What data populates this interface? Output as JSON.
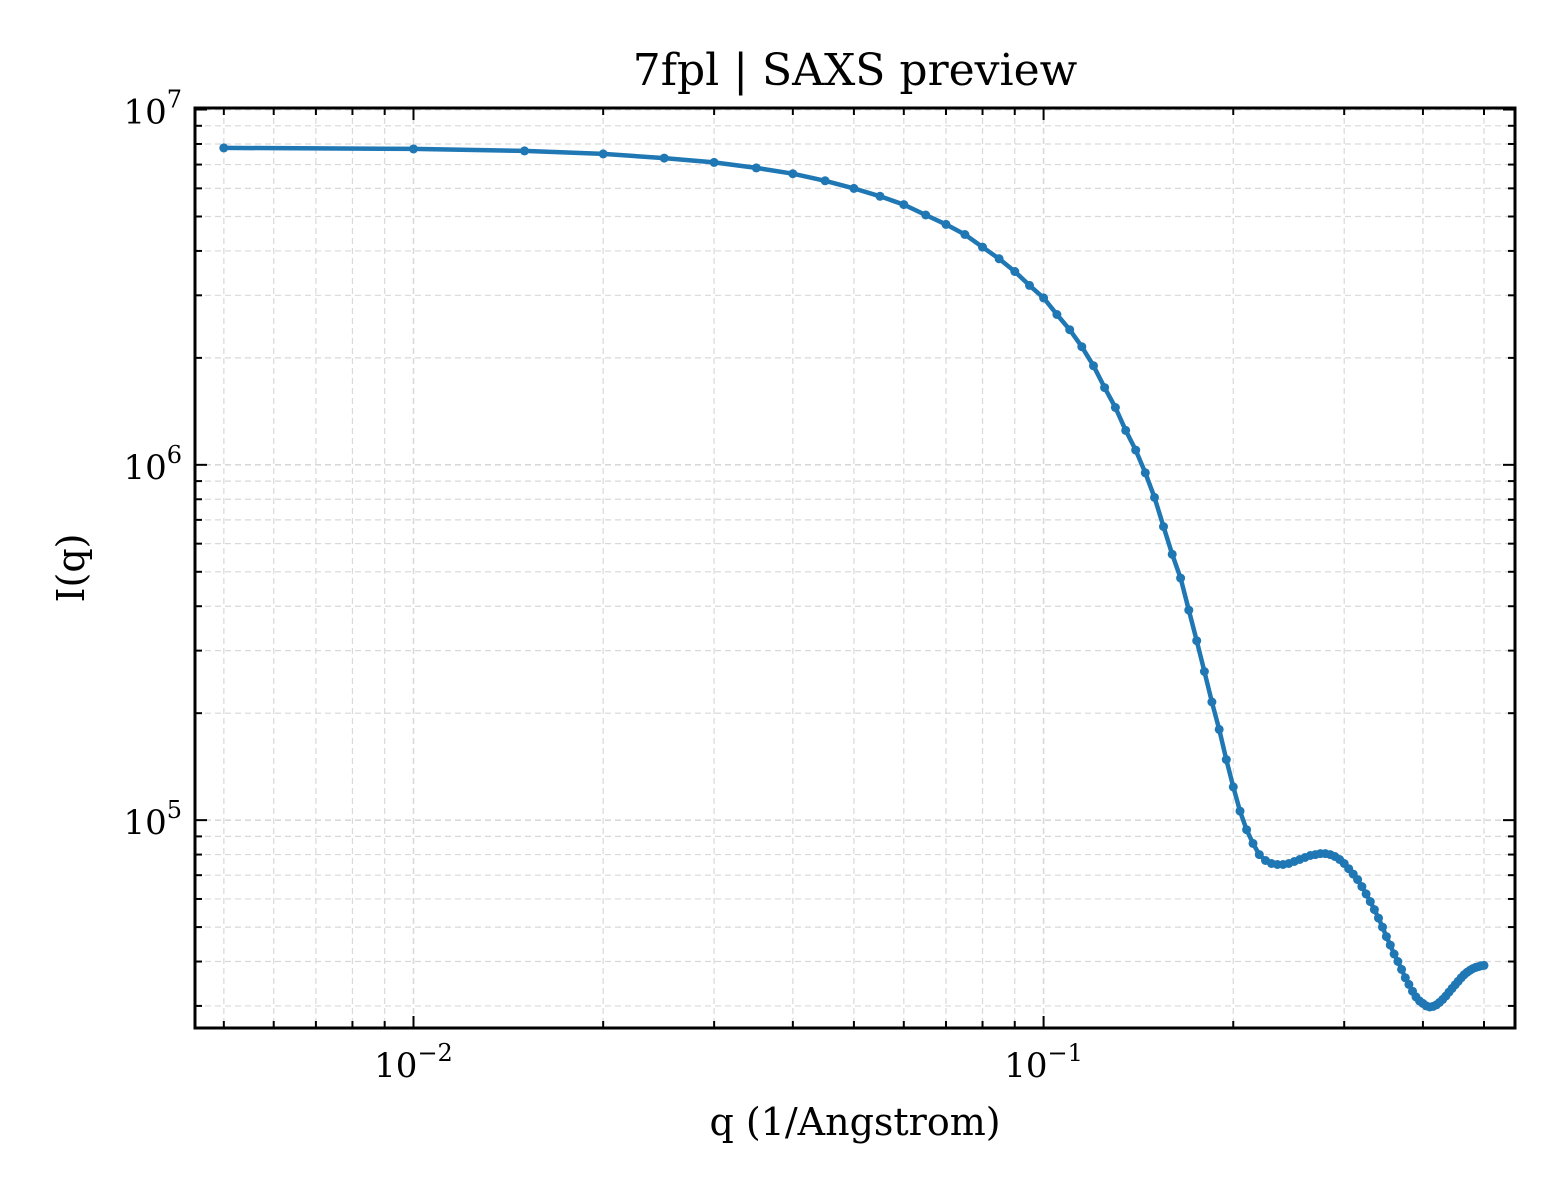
{
  "chart_data": {
    "type": "line",
    "title": "7fpl | SAXS preview",
    "xlabel": "q (1/Angstrom)",
    "ylabel": "I(q)",
    "xscale": "log",
    "yscale": "log",
    "xlim": [
      0.0045,
      0.56
    ],
    "ylim": [
      26000,
      10100000
    ],
    "x_ticks": [
      {
        "base": "10",
        "exp": "−2",
        "value": 0.01
      },
      {
        "base": "10",
        "exp": "−1",
        "value": 0.1
      }
    ],
    "y_ticks": [
      {
        "base": "10",
        "exp": "5",
        "value": 100000
      },
      {
        "base": "10",
        "exp": "6",
        "value": 1000000
      },
      {
        "base": "10",
        "exp": "7",
        "value": 10000000
      }
    ],
    "grid": true,
    "colors": {
      "line": "#1f77b4",
      "grid": "#d9d9d9",
      "axes": "#000000"
    },
    "series": [
      {
        "x": [
          0.005,
          0.01,
          0.015,
          0.02,
          0.025,
          0.03,
          0.035,
          0.04,
          0.045,
          0.05,
          0.055,
          0.06,
          0.065,
          0.07,
          0.075,
          0.08,
          0.085,
          0.09,
          0.095,
          0.1,
          0.105,
          0.11,
          0.115,
          0.12,
          0.125,
          0.13,
          0.135,
          0.14,
          0.145,
          0.15,
          0.155,
          0.16,
          0.165,
          0.17,
          0.175,
          0.18,
          0.185,
          0.19,
          0.195,
          0.2,
          0.205,
          0.21,
          0.215,
          0.22,
          0.225,
          0.23,
          0.235,
          0.24,
          0.245,
          0.25,
          0.255,
          0.26,
          0.265,
          0.27,
          0.275,
          0.28,
          0.285,
          0.29,
          0.295,
          0.3,
          0.305,
          0.31,
          0.315,
          0.32,
          0.325,
          0.33,
          0.335,
          0.34,
          0.345,
          0.35,
          0.355,
          0.36,
          0.365,
          0.37,
          0.375,
          0.38,
          0.385,
          0.39,
          0.395,
          0.4,
          0.405,
          0.41,
          0.415,
          0.42,
          0.425,
          0.43,
          0.435,
          0.44,
          0.445,
          0.45,
          0.455,
          0.46,
          0.465,
          0.47,
          0.475,
          0.48,
          0.485,
          0.49,
          0.495,
          0.5
        ],
        "y": [
          7800000,
          7750000,
          7650000,
          7500000,
          7300000,
          7100000,
          6850000,
          6600000,
          6300000,
          6000000,
          5700000,
          5400000,
          5050000,
          4750000,
          4450000,
          4100000,
          3800000,
          3500000,
          3200000,
          2950000,
          2650000,
          2400000,
          2150000,
          1900000,
          1650000,
          1450000,
          1250000,
          1100000,
          950000,
          810000,
          670000,
          560000,
          480000,
          390000,
          320000,
          262000,
          215000,
          180000,
          148000,
          124000,
          106000,
          94000,
          86000,
          80000,
          77000,
          75500,
          75000,
          75000,
          75500,
          76500,
          77500,
          78500,
          79500,
          80000,
          80500,
          80500,
          80000,
          79000,
          77500,
          75500,
          73000,
          70500,
          68000,
          65000,
          62000,
          59000,
          56000,
          53000,
          50000,
          47000,
          44500,
          42000,
          40000,
          38000,
          36000,
          34500,
          33000,
          31800,
          31000,
          30500,
          30000,
          29800,
          29900,
          30200,
          30700,
          31300,
          32000,
          32800,
          33600,
          34400,
          35200,
          36000,
          36700,
          37300,
          37800,
          38200,
          38500,
          38700,
          38900,
          39000
        ]
      }
    ]
  }
}
